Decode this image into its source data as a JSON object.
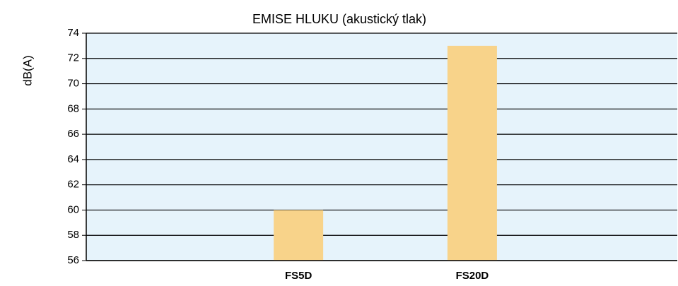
{
  "chart_data": {
    "type": "bar",
    "title": "EMISE HLUKU  (akustický tlak)",
    "y_label": "dB(A)",
    "categories": [
      "FS5D",
      "FS20D"
    ],
    "values": [
      60,
      73
    ],
    "color": "#f8d38a",
    "ylim": [
      56,
      74
    ],
    "yticks": [
      56,
      58,
      60,
      62,
      64,
      66,
      68,
      70,
      72,
      74
    ],
    "grid": true
  }
}
